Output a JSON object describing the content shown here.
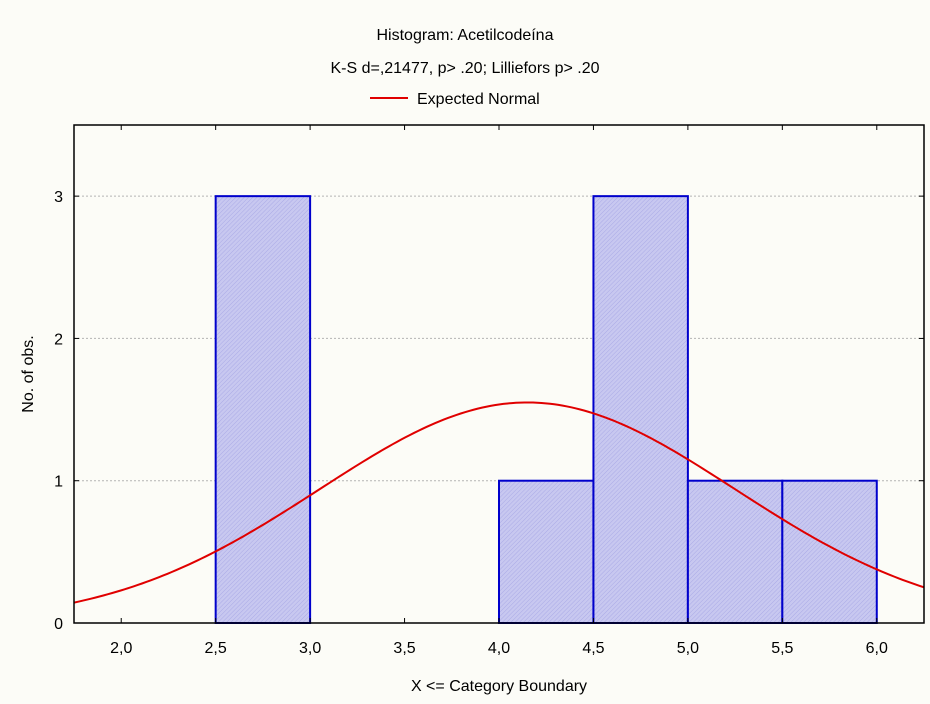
{
  "chart_data": {
    "type": "bar",
    "title": "Histogram: Acetilcodeína",
    "subtitle": "K-S d=,21477, p> .20; Lilliefors p> .20",
    "legend": {
      "label": "Expected Normal",
      "placement": "top"
    },
    "xlabel": "X <= Category Boundary",
    "ylabel": "No. of obs.",
    "xlim": [
      1.75,
      6.25
    ],
    "ylim": [
      0,
      3.5
    ],
    "x_ticks": [
      2.0,
      2.5,
      3.0,
      3.5,
      4.0,
      4.5,
      5.0,
      5.5,
      6.0
    ],
    "x_tick_labels": [
      "2,0",
      "2,5",
      "3,0",
      "3,5",
      "4,0",
      "4,5",
      "5,0",
      "5,5",
      "6,0"
    ],
    "y_ticks": [
      0,
      1,
      2,
      3
    ],
    "y_tick_labels": [
      "0",
      "1",
      "2",
      "3"
    ],
    "grid": {
      "horizontal": true,
      "vertical": false
    },
    "bins": [
      {
        "lower": 2.0,
        "upper": 2.5,
        "count": 0
      },
      {
        "lower": 2.5,
        "upper": 3.0,
        "count": 3
      },
      {
        "lower": 3.0,
        "upper": 3.5,
        "count": 0
      },
      {
        "lower": 3.5,
        "upper": 4.0,
        "count": 0
      },
      {
        "lower": 4.0,
        "upper": 4.5,
        "count": 1
      },
      {
        "lower": 4.5,
        "upper": 5.0,
        "count": 3
      },
      {
        "lower": 5.0,
        "upper": 5.5,
        "count": 1
      },
      {
        "lower": 5.5,
        "upper": 6.0,
        "count": 1
      }
    ],
    "normal_curve": {
      "mean": 4.15,
      "sd": 1.1,
      "peak": 1.55
    },
    "colors": {
      "bar_fill": "#c8c8f0",
      "bar_stroke": "#0000cc",
      "curve": "#e00000",
      "background": "#fcfcf7",
      "grid": "#b4b4b4"
    }
  }
}
